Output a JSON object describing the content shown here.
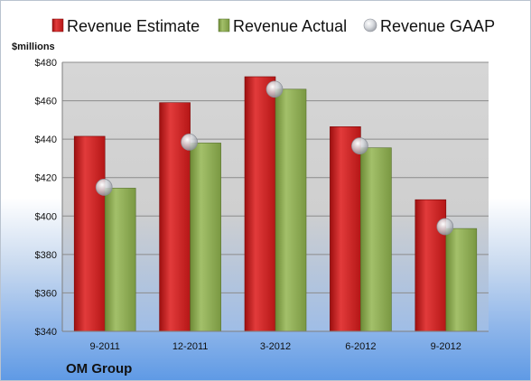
{
  "chart_data": {
    "type": "bar",
    "categories": [
      "9-2011",
      "12-2011",
      "3-2012",
      "6-2012",
      "9-2012"
    ],
    "series": [
      {
        "name": "Revenue Estimate",
        "kind": "bar",
        "color": "#d41f1f",
        "values": [
          441.5,
          459,
          472.5,
          446.5,
          408.5
        ]
      },
      {
        "name": "Revenue Actual",
        "kind": "bar",
        "color": "#8fae52",
        "values": [
          414.5,
          438,
          466,
          435.5,
          393.5
        ]
      },
      {
        "name": "Revenue GAAP",
        "kind": "marker",
        "color": "#c8ccd2",
        "values": [
          415,
          438.5,
          466,
          436.5,
          394.5
        ]
      }
    ],
    "unit_label": "$millions",
    "ylim": [
      340,
      480
    ],
    "ytick_labels": [
      "$340",
      "$360",
      "$380",
      "$400",
      "$420",
      "$440",
      "$460",
      "$480"
    ],
    "ytick_values": [
      340,
      360,
      380,
      400,
      420,
      440,
      460,
      480
    ],
    "grid": true,
    "legend_position": "top",
    "company": "OM Group"
  },
  "colors": {
    "plot_background": "#d9d9d9",
    "gridline": "#8c8c8c",
    "estimate": "#d41f1f",
    "actual": "#8fae52",
    "gaap": "#c8ccd2"
  }
}
